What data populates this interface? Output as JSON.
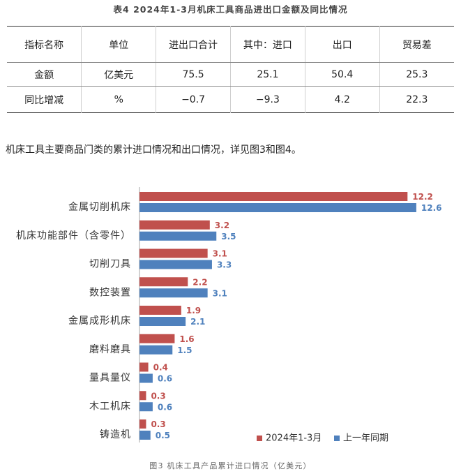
{
  "table": {
    "title": "表4 2024年1-3月机床工具商品进出口金额及同比情况",
    "headers": [
      "指标名称",
      "单位",
      "进出口合计",
      "其中：进口",
      "出口",
      "贸易差"
    ],
    "rows": [
      [
        "金额",
        "亿美元",
        "75.5",
        "25.1",
        "50.4",
        "25.3"
      ],
      [
        "同比增减",
        "%",
        "−0.7",
        "−9.3",
        "4.2",
        "22.3"
      ]
    ]
  },
  "paragraph": "机床工具主要商品门类的累计进口情况和出口情况，详见图3和图4。",
  "chart_data": {
    "type": "bar",
    "orientation": "horizontal",
    "categories": [
      "金属切削机床",
      "机床功能部件（含零件）",
      "切削刀具",
      "数控装置",
      "金属成形机床",
      "磨料磨具",
      "量具量仪",
      "木工机床",
      "铸造机"
    ],
    "series": [
      {
        "name": "2024年1-3月",
        "values": [
          12.2,
          3.2,
          3.1,
          2.2,
          1.9,
          1.6,
          0.4,
          0.3,
          0.3
        ],
        "color": "#c0504d"
      },
      {
        "name": "上一年同期",
        "values": [
          12.6,
          3.5,
          3.3,
          3.1,
          2.1,
          1.5,
          0.6,
          0.6,
          0.5
        ],
        "color": "#4f81bd"
      }
    ],
    "caption": "图3 机床工具产品累计进口情况（亿美元）",
    "xlim": [
      0,
      14
    ],
    "grid": false,
    "data_labels": true,
    "legend": "bottom-right"
  }
}
